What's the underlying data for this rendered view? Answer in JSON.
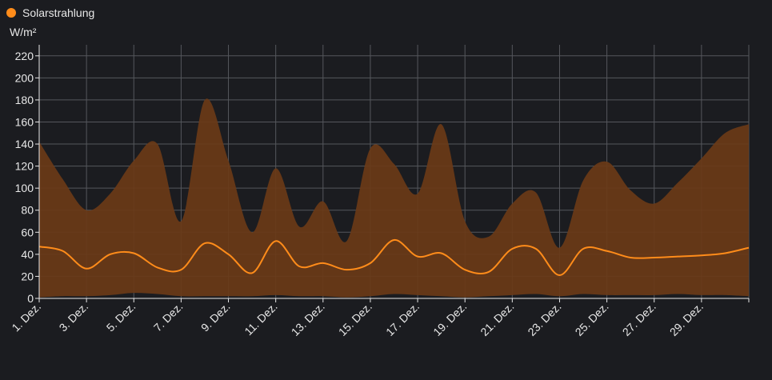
{
  "legend": {
    "label": "Solarstrahlung",
    "color": "#ff8c1a"
  },
  "unit_label": "W/m²",
  "chart_data": {
    "type": "area",
    "ylabel": "W/m²",
    "ylim": [
      0,
      230
    ],
    "yticks": [
      0,
      20,
      40,
      60,
      80,
      100,
      120,
      140,
      160,
      180,
      200,
      220
    ],
    "xticks": [
      "1. Dez.",
      "3. Dez.",
      "5. Dez.",
      "7. Dez.",
      "9. Dez.",
      "11. Dez.",
      "13. Dez.",
      "15. Dez.",
      "17. Dez.",
      "19. Dez.",
      "21. Dez.",
      "23. Dez.",
      "25. Dez.",
      "27. Dez.",
      "29. Dez."
    ],
    "x": [
      1,
      2,
      3,
      4,
      5,
      6,
      7,
      8,
      9,
      10,
      11,
      12,
      13,
      14,
      15,
      16,
      17,
      18,
      19,
      20,
      21,
      22,
      23,
      24,
      25,
      26,
      27,
      28,
      29,
      30,
      31
    ],
    "series": [
      {
        "name": "Solarstrahlung",
        "color": "#ff8c1a",
        "mean": [
          47,
          43,
          27,
          40,
          41,
          28,
          26,
          50,
          40,
          23,
          52,
          29,
          32,
          26,
          32,
          53,
          38,
          41,
          26,
          24,
          45,
          45,
          21,
          45,
          43,
          37,
          37,
          38,
          39,
          41,
          46
        ],
        "max": [
          142,
          108,
          80,
          95,
          125,
          140,
          70,
          180,
          125,
          60,
          118,
          65,
          88,
          52,
          136,
          122,
          95,
          158,
          70,
          56,
          86,
          96,
          46,
          107,
          124,
          98,
          86,
          105,
          127,
          150,
          158
        ],
        "min": [
          1,
          2,
          2,
          3,
          5,
          4,
          2,
          2,
          2,
          2,
          3,
          2,
          2,
          1,
          2,
          4,
          3,
          2,
          1,
          2,
          3,
          4,
          2,
          4,
          3,
          3,
          3,
          4,
          3,
          3,
          2
        ]
      }
    ],
    "grid": true,
    "legend_position": "top-left"
  }
}
